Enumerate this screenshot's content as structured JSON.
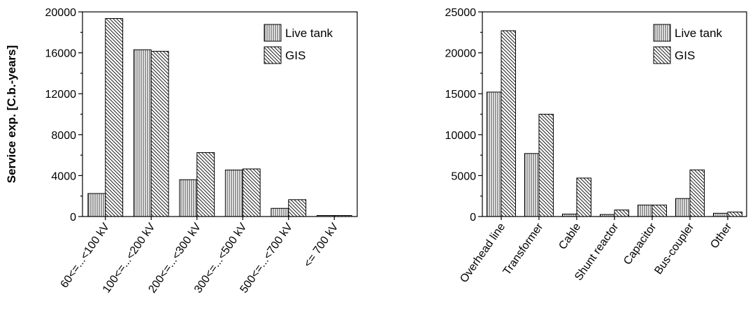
{
  "chart_data": [
    {
      "type": "bar",
      "ylabel": "Service exp. [C.b.-years]",
      "categories": [
        "60<=...<100 kV",
        "100<=...<200 kV",
        "200<=...<300 kV",
        "300<=...<500 kV",
        "500<=...<700 kV",
        "<= 700 kV"
      ],
      "series": [
        {
          "name": "Live tank",
          "color": "#777777",
          "pattern": "vertical",
          "values": [
            2250,
            16300,
            3600,
            4550,
            800,
            100
          ]
        },
        {
          "name": "GIS",
          "color": "#333333",
          "pattern": "diagonal",
          "values": [
            19350,
            16150,
            6250,
            4650,
            1650,
            100
          ]
        }
      ],
      "ylim": [
        0,
        20000
      ],
      "yticks": [
        0,
        4000,
        8000,
        12000,
        16000,
        20000
      ],
      "grid": false,
      "legend": "upper right"
    },
    {
      "type": "bar",
      "categories": [
        "Overhead line",
        "Transformer",
        "Cable",
        "Shunt reactor",
        "Capacitor",
        "Bus-coupler",
        "Other"
      ],
      "series": [
        {
          "name": "Live tank",
          "color": "#777777",
          "pattern": "vertical",
          "values": [
            15200,
            7700,
            300,
            250,
            1400,
            2200,
            400
          ]
        },
        {
          "name": "GIS",
          "color": "#333333",
          "pattern": "diagonal",
          "values": [
            22700,
            12500,
            4700,
            800,
            1400,
            5700,
            550
          ]
        }
      ],
      "ylim": [
        0,
        25000
      ],
      "yticks": [
        0,
        5000,
        10000,
        15000,
        20000,
        25000
      ],
      "grid": false,
      "legend": "upper right"
    }
  ]
}
